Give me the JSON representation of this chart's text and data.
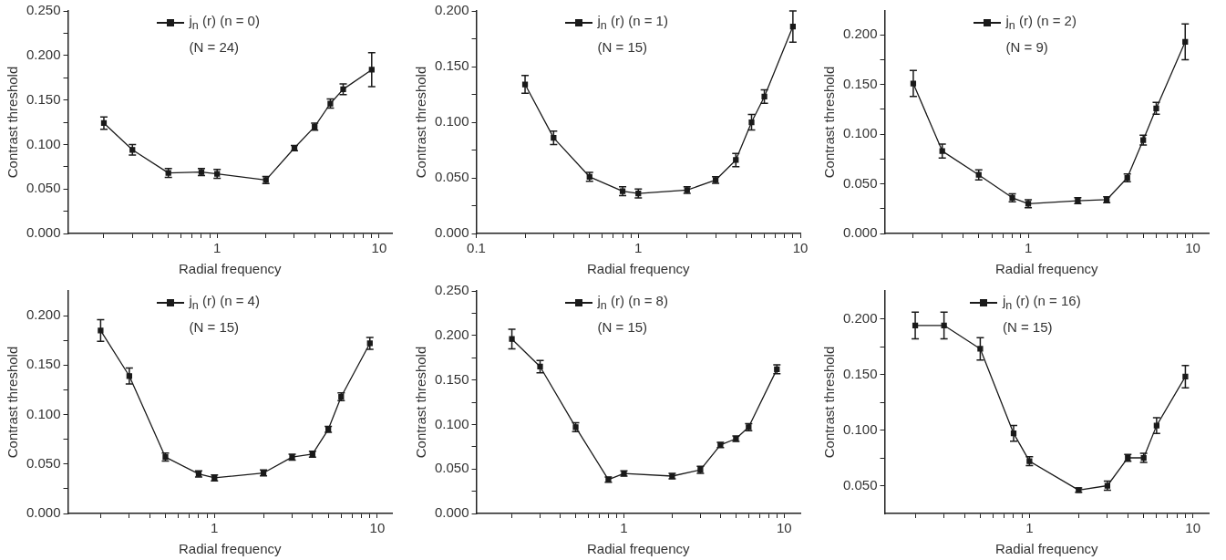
{
  "chart_data": [
    {
      "type": "line",
      "xlabel": "Radial frequency",
      "ylabel": "Contrast threshold",
      "log": "x",
      "marker": "square",
      "legend": "top",
      "annotations": [
        "(N = 24)"
      ],
      "x": [
        0.2,
        0.3,
        0.5,
        0.8,
        1,
        2,
        3,
        4,
        5,
        6,
        9
      ],
      "series": [
        {
          "name": "j$_{n}$ (r) (n = 0)",
          "color": "#1a1a1a",
          "values": [
            0.124,
            0.094,
            0.068,
            0.069,
            0.067,
            0.06,
            0.096,
            0.12,
            0.146,
            0.162,
            0.184
          ],
          "errors": [
            0.007,
            0.006,
            0.005,
            0.004,
            0.005,
            0.004,
            0.003,
            0.004,
            0.005,
            0.006,
            0.019
          ]
        }
      ],
      "xlim": [
        0.12,
        12
      ],
      "xticks": [
        {
          "value": 0.2,
          "label": null
        },
        {
          "value": 0.3,
          "label": null
        },
        {
          "value": 0.4,
          "label": null
        },
        {
          "value": 0.5,
          "label": null
        },
        {
          "value": 0.6,
          "label": null
        },
        {
          "value": 0.7,
          "label": null
        },
        {
          "value": 0.8,
          "label": null
        },
        {
          "value": 0.9,
          "label": null
        },
        {
          "value": 1,
          "label": "1"
        },
        {
          "value": 2,
          "label": null
        },
        {
          "value": 3,
          "label": null
        },
        {
          "value": 4,
          "label": null
        },
        {
          "value": 5,
          "label": null
        },
        {
          "value": 6,
          "label": null
        },
        {
          "value": 7,
          "label": null
        },
        {
          "value": 8,
          "label": null
        },
        {
          "value": 9,
          "label": null
        },
        {
          "value": 10,
          "label": "10"
        }
      ],
      "ylim": [
        0,
        0.25
      ],
      "yticks": [
        {
          "value": 0,
          "label": "0.000"
        },
        {
          "value": 0.025,
          "label": null
        },
        {
          "value": 0.05,
          "label": "0.050"
        },
        {
          "value": 0.075,
          "label": null
        },
        {
          "value": 0.1,
          "label": "0.100"
        },
        {
          "value": 0.125,
          "label": null
        },
        {
          "value": 0.15,
          "label": "0.150"
        },
        {
          "value": 0.175,
          "label": null
        },
        {
          "value": 0.2,
          "label": "0.200"
        },
        {
          "value": 0.225,
          "label": null
        },
        {
          "value": 0.25,
          "label": "0.250"
        }
      ]
    },
    {
      "type": "line",
      "xlabel": "Radial frequency",
      "ylabel": "Contrast threshold",
      "log": "x",
      "marker": "square",
      "legend": "top",
      "annotations": [
        "(N = 15)"
      ],
      "x": [
        0.2,
        0.3,
        0.5,
        0.8,
        1,
        2,
        3,
        4,
        5,
        6,
        9
      ],
      "series": [
        {
          "name": "j$_{n}$ (r) (n = 1)",
          "color": "#1a1a1a",
          "values": [
            0.134,
            0.086,
            0.051,
            0.038,
            0.036,
            0.039,
            0.048,
            0.066,
            0.1,
            0.123,
            0.186
          ],
          "errors": [
            0.008,
            0.006,
            0.004,
            0.004,
            0.004,
            0.003,
            0.003,
            0.006,
            0.007,
            0.006,
            0.014
          ]
        }
      ],
      "xlim": [
        0.1,
        10
      ],
      "xticks": [
        {
          "value": 0.1,
          "label": "0.1"
        },
        {
          "value": 0.2,
          "label": null
        },
        {
          "value": 0.3,
          "label": null
        },
        {
          "value": 0.4,
          "label": null
        },
        {
          "value": 0.5,
          "label": null
        },
        {
          "value": 0.6,
          "label": null
        },
        {
          "value": 0.7,
          "label": null
        },
        {
          "value": 0.8,
          "label": null
        },
        {
          "value": 0.9,
          "label": null
        },
        {
          "value": 1,
          "label": "1"
        },
        {
          "value": 2,
          "label": null
        },
        {
          "value": 3,
          "label": null
        },
        {
          "value": 4,
          "label": null
        },
        {
          "value": 5,
          "label": null
        },
        {
          "value": 6,
          "label": null
        },
        {
          "value": 7,
          "label": null
        },
        {
          "value": 8,
          "label": null
        },
        {
          "value": 9,
          "label": null
        },
        {
          "value": 10,
          "label": "10"
        }
      ],
      "ylim": [
        0,
        0.2
      ],
      "yticks": [
        {
          "value": 0,
          "label": "0.000"
        },
        {
          "value": 0.025,
          "label": null
        },
        {
          "value": 0.05,
          "label": "0.050"
        },
        {
          "value": 0.075,
          "label": null
        },
        {
          "value": 0.1,
          "label": "0.100"
        },
        {
          "value": 0.125,
          "label": null
        },
        {
          "value": 0.15,
          "label": "0.150"
        },
        {
          "value": 0.175,
          "label": null
        },
        {
          "value": 0.2,
          "label": "0.200"
        }
      ]
    },
    {
      "type": "line",
      "xlabel": "Radial frequency",
      "ylabel": "Contrast threshold",
      "log": "x",
      "marker": "square",
      "legend": "top",
      "annotations": [
        "(N = 9)"
      ],
      "x": [
        0.2,
        0.3,
        0.5,
        0.8,
        1,
        2,
        3,
        4,
        5,
        6,
        9
      ],
      "series": [
        {
          "name": "j$_{n}$ (r) (n = 2)",
          "color": "#1a1a1a",
          "values": [
            0.151,
            0.083,
            0.059,
            0.036,
            0.03,
            0.033,
            0.034,
            0.056,
            0.094,
            0.126,
            0.193
          ],
          "errors": [
            0.013,
            0.007,
            0.005,
            0.004,
            0.004,
            0.003,
            0.003,
            0.004,
            0.005,
            0.006,
            0.018
          ]
        }
      ],
      "xlim": [
        0.134,
        12.5
      ],
      "xticks": [
        {
          "value": 0.2,
          "label": null
        },
        {
          "value": 0.3,
          "label": null
        },
        {
          "value": 0.4,
          "label": null
        },
        {
          "value": 0.5,
          "label": null
        },
        {
          "value": 0.6,
          "label": null
        },
        {
          "value": 0.7,
          "label": null
        },
        {
          "value": 0.8,
          "label": null
        },
        {
          "value": 0.9,
          "label": null
        },
        {
          "value": 1,
          "label": "1"
        },
        {
          "value": 2,
          "label": null
        },
        {
          "value": 3,
          "label": null
        },
        {
          "value": 4,
          "label": null
        },
        {
          "value": 5,
          "label": null
        },
        {
          "value": 6,
          "label": null
        },
        {
          "value": 7,
          "label": null
        },
        {
          "value": 8,
          "label": null
        },
        {
          "value": 9,
          "label": null
        },
        {
          "value": 10,
          "label": "10"
        }
      ],
      "ylim": [
        0,
        0.224
      ],
      "yticks": [
        {
          "value": 0,
          "label": "0.000"
        },
        {
          "value": 0.025,
          "label": null
        },
        {
          "value": 0.05,
          "label": "0.050"
        },
        {
          "value": 0.075,
          "label": null
        },
        {
          "value": 0.1,
          "label": "0.100"
        },
        {
          "value": 0.125,
          "label": null
        },
        {
          "value": 0.15,
          "label": "0.150"
        },
        {
          "value": 0.175,
          "label": null
        },
        {
          "value": 0.2,
          "label": "0.200"
        }
      ]
    },
    {
      "type": "line",
      "xlabel": "Radial frequency",
      "ylabel": "Contrast threshold",
      "log": "x",
      "marker": "square",
      "legend": "top",
      "annotations": [
        "(N = 15)"
      ],
      "x": [
        0.2,
        0.3,
        0.5,
        0.8,
        1,
        2,
        3,
        4,
        5,
        6,
        9
      ],
      "series": [
        {
          "name": "j$_{n}$ (r) (n = 4)",
          "color": "#1a1a1a",
          "values": [
            0.185,
            0.139,
            0.057,
            0.04,
            0.036,
            0.041,
            0.057,
            0.06,
            0.085,
            0.118,
            0.172
          ],
          "errors": [
            0.011,
            0.008,
            0.004,
            0.003,
            0.003,
            0.003,
            0.003,
            0.003,
            0.003,
            0.004,
            0.006
          ]
        }
      ],
      "xlim": [
        0.126,
        12.3
      ],
      "xticks": [
        {
          "value": 0.2,
          "label": null
        },
        {
          "value": 0.3,
          "label": null
        },
        {
          "value": 0.4,
          "label": null
        },
        {
          "value": 0.5,
          "label": null
        },
        {
          "value": 0.6,
          "label": null
        },
        {
          "value": 0.7,
          "label": null
        },
        {
          "value": 0.8,
          "label": null
        },
        {
          "value": 0.9,
          "label": null
        },
        {
          "value": 1,
          "label": "1"
        },
        {
          "value": 2,
          "label": null
        },
        {
          "value": 3,
          "label": null
        },
        {
          "value": 4,
          "label": null
        },
        {
          "value": 5,
          "label": null
        },
        {
          "value": 6,
          "label": null
        },
        {
          "value": 7,
          "label": null
        },
        {
          "value": 8,
          "label": null
        },
        {
          "value": 9,
          "label": null
        },
        {
          "value": 10,
          "label": "10"
        }
      ],
      "ylim": [
        0,
        0.225
      ],
      "yticks": [
        {
          "value": 0,
          "label": "0.000"
        },
        {
          "value": 0.025,
          "label": null
        },
        {
          "value": 0.05,
          "label": "0.050"
        },
        {
          "value": 0.075,
          "label": null
        },
        {
          "value": 0.1,
          "label": "0.100"
        },
        {
          "value": 0.125,
          "label": null
        },
        {
          "value": 0.15,
          "label": "0.150"
        },
        {
          "value": 0.175,
          "label": null
        },
        {
          "value": 0.2,
          "label": "0.200"
        }
      ]
    },
    {
      "type": "line",
      "xlabel": "Radial frequency",
      "ylabel": "Contrast threshold",
      "log": "x",
      "marker": "square",
      "legend": "top",
      "annotations": [
        "(N = 15)"
      ],
      "x": [
        0.2,
        0.3,
        0.5,
        0.8,
        1,
        2,
        3,
        4,
        5,
        6,
        9
      ],
      "series": [
        {
          "name": "j$_{n}$ (r) (n = 8)",
          "color": "#1a1a1a",
          "values": [
            0.196,
            0.165,
            0.097,
            0.038,
            0.045,
            0.042,
            0.049,
            0.077,
            0.084,
            0.097,
            0.162
          ],
          "errors": [
            0.011,
            0.007,
            0.005,
            0.003,
            0.003,
            0.003,
            0.004,
            0.003,
            0.003,
            0.004,
            0.005
          ]
        }
      ],
      "xlim": [
        0.12,
        12.6
      ],
      "xticks": [
        {
          "value": 0.2,
          "label": null
        },
        {
          "value": 0.3,
          "label": null
        },
        {
          "value": 0.4,
          "label": null
        },
        {
          "value": 0.5,
          "label": null
        },
        {
          "value": 0.6,
          "label": null
        },
        {
          "value": 0.7,
          "label": null
        },
        {
          "value": 0.8,
          "label": null
        },
        {
          "value": 0.9,
          "label": null
        },
        {
          "value": 1,
          "label": "1"
        },
        {
          "value": 2,
          "label": null
        },
        {
          "value": 3,
          "label": null
        },
        {
          "value": 4,
          "label": null
        },
        {
          "value": 5,
          "label": null
        },
        {
          "value": 6,
          "label": null
        },
        {
          "value": 7,
          "label": null
        },
        {
          "value": 8,
          "label": null
        },
        {
          "value": 9,
          "label": null
        },
        {
          "value": 10,
          "label": "10"
        }
      ],
      "ylim": [
        0,
        0.25
      ],
      "yticks": [
        {
          "value": 0,
          "label": "0.000"
        },
        {
          "value": 0.025,
          "label": null
        },
        {
          "value": 0.05,
          "label": "0.050"
        },
        {
          "value": 0.075,
          "label": null
        },
        {
          "value": 0.1,
          "label": "0.100"
        },
        {
          "value": 0.125,
          "label": null
        },
        {
          "value": 0.15,
          "label": "0.150"
        },
        {
          "value": 0.175,
          "label": null
        },
        {
          "value": 0.2,
          "label": "0.200"
        },
        {
          "value": 0.225,
          "label": null
        },
        {
          "value": 0.25,
          "label": "0.250"
        }
      ]
    },
    {
      "type": "line",
      "xlabel": "Radial frequency",
      "ylabel": "Contrast threshold",
      "log": "x",
      "marker": "square",
      "legend": "top",
      "annotations": [
        "(N = 15)"
      ],
      "x": [
        0.2,
        0.3,
        0.5,
        0.8,
        1,
        2,
        3,
        4,
        5,
        6,
        9
      ],
      "series": [
        {
          "name": "j$_{n}$ (r) (n = 16)",
          "color": "#1a1a1a",
          "values": [
            0.194,
            0.194,
            0.173,
            0.097,
            0.072,
            0.046,
            0.05,
            0.075,
            0.075,
            0.104,
            0.148
          ],
          "errors": [
            0.012,
            0.012,
            0.01,
            0.007,
            0.004,
            0.002,
            0.004,
            0.003,
            0.004,
            0.007,
            0.01
          ]
        }
      ],
      "xlim": [
        0.13,
        12.5
      ],
      "xticks": [
        {
          "value": 0.2,
          "label": null
        },
        {
          "value": 0.3,
          "label": null
        },
        {
          "value": 0.4,
          "label": null
        },
        {
          "value": 0.5,
          "label": null
        },
        {
          "value": 0.6,
          "label": null
        },
        {
          "value": 0.7,
          "label": null
        },
        {
          "value": 0.8,
          "label": null
        },
        {
          "value": 0.9,
          "label": null
        },
        {
          "value": 1,
          "label": "1"
        },
        {
          "value": 2,
          "label": null
        },
        {
          "value": 3,
          "label": null
        },
        {
          "value": 4,
          "label": null
        },
        {
          "value": 5,
          "label": null
        },
        {
          "value": 6,
          "label": null
        },
        {
          "value": 7,
          "label": null
        },
        {
          "value": 8,
          "label": null
        },
        {
          "value": 9,
          "label": null
        },
        {
          "value": 10,
          "label": "10"
        }
      ],
      "ylim": [
        0.025,
        0.225
      ],
      "yticks": [
        {
          "value": 0.05,
          "label": "0.050"
        },
        {
          "value": 0.075,
          "label": null
        },
        {
          "value": 0.1,
          "label": "0.100"
        },
        {
          "value": 0.125,
          "label": null
        },
        {
          "value": 0.15,
          "label": "0.150"
        },
        {
          "value": 0.175,
          "label": null
        },
        {
          "value": 0.2,
          "label": "0.200"
        }
      ]
    }
  ]
}
